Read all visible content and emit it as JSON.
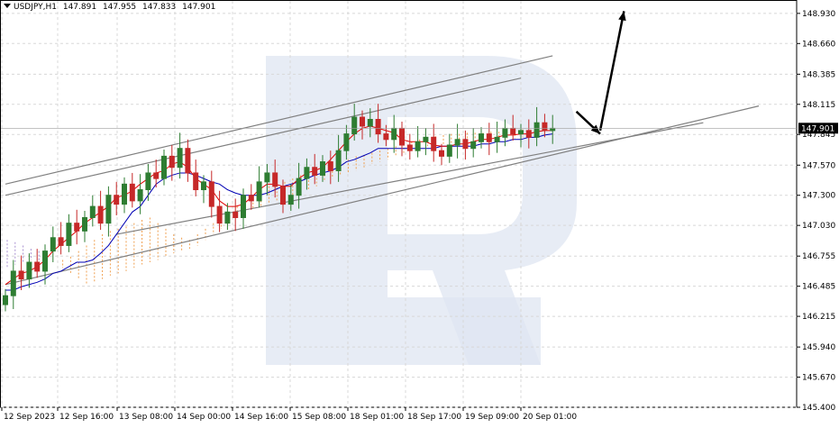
{
  "header": {
    "symbol": "USDJPY,H1",
    "open": "147.891",
    "high": "147.955",
    "low": "147.833",
    "close": "147.901"
  },
  "watermark": {
    "letter": "R",
    "color": "#dfe6f1"
  },
  "colors": {
    "background": "#ffffff",
    "grid": "#d8d8d8",
    "bull": "#2e7d32",
    "bear": "#c62828",
    "tenkan": "#e00000",
    "kijun": "#0000b4",
    "cloud_bull": "#f0a050",
    "cloud_bear": "#a890d0",
    "trendline": "#808080",
    "arrow": "#000000"
  },
  "chart_data": {
    "type": "candlestick",
    "symbol": "USDJPY",
    "timeframe": "H1",
    "current_price": "147.901",
    "y_ticks": [
      "148.930",
      "148.660",
      "148.385",
      "148.115",
      "147.845",
      "147.570",
      "147.300",
      "147.030",
      "146.755",
      "146.485",
      "146.215",
      "145.940",
      "145.670",
      "145.400"
    ],
    "x_ticks": [
      "12 Sep 2023",
      "12 Sep 16:00",
      "13 Sep 08:00",
      "14 Sep 00:00",
      "14 Sep 16:00",
      "15 Sep 08:00",
      "18 Sep 01:00",
      "18 Sep 17:00",
      "19 Sep 09:00",
      "20 Sep 01:00"
    ],
    "ylim": [
      145.4,
      149.05
    ],
    "closes": [
      146.4,
      146.62,
      146.55,
      146.7,
      146.62,
      146.8,
      146.92,
      146.85,
      147.05,
      146.98,
      147.1,
      147.2,
      147.05,
      147.3,
      147.22,
      147.4,
      147.25,
      147.35,
      147.5,
      147.45,
      147.65,
      147.55,
      147.72,
      147.5,
      147.35,
      147.42,
      147.2,
      147.05,
      147.15,
      147.1,
      147.3,
      147.25,
      147.42,
      147.5,
      147.38,
      147.22,
      147.3,
      147.45,
      147.55,
      147.48,
      147.6,
      147.52,
      147.7,
      147.85,
      148.0,
      147.92,
      147.98,
      147.85,
      147.8,
      147.9,
      147.75,
      147.7,
      147.78,
      147.82,
      147.7,
      147.65,
      147.75,
      147.8,
      147.72,
      147.78,
      147.85,
      147.78,
      147.82,
      147.9,
      147.85,
      147.88,
      147.82,
      147.95,
      147.88,
      147.9
    ],
    "tenkan": [
      146.5,
      146.55,
      146.6,
      146.62,
      146.66,
      146.72,
      146.8,
      146.86,
      146.92,
      146.98,
      147.05,
      147.1,
      147.15,
      147.2,
      147.28,
      147.3,
      147.34,
      147.4,
      147.45,
      147.5,
      147.52,
      147.58,
      147.6,
      147.55,
      147.45,
      147.4,
      147.35,
      147.25,
      147.2,
      147.2,
      147.22,
      147.28,
      147.35,
      147.4,
      147.4,
      147.38,
      147.38,
      147.45,
      147.5,
      147.52,
      147.55,
      147.62,
      147.7,
      147.78,
      147.85,
      147.9,
      147.92,
      147.9,
      147.88,
      147.86,
      147.8,
      147.78,
      147.78,
      147.78,
      147.75,
      147.74,
      147.74,
      147.76,
      147.76,
      147.78,
      147.8,
      147.8,
      147.82,
      147.84,
      147.84,
      147.85,
      147.85,
      147.87,
      147.88,
      147.88
    ],
    "kijun": [
      146.45,
      146.45,
      146.48,
      146.5,
      146.52,
      146.55,
      146.6,
      146.62,
      146.66,
      146.7,
      146.7,
      146.72,
      146.78,
      146.85,
      146.95,
      147.05,
      147.15,
      147.2,
      147.3,
      147.4,
      147.45,
      147.48,
      147.5,
      147.5,
      147.48,
      147.45,
      147.42,
      147.4,
      147.35,
      147.32,
      147.3,
      147.3,
      147.3,
      147.32,
      147.35,
      147.38,
      147.4,
      147.42,
      147.45,
      147.48,
      147.5,
      147.52,
      147.55,
      147.6,
      147.62,
      147.65,
      147.68,
      147.72,
      147.72,
      147.72,
      147.72,
      147.72,
      147.72,
      147.72,
      147.72,
      147.74,
      147.74,
      147.74,
      147.74,
      147.74,
      147.76,
      147.76,
      147.78,
      147.78,
      147.8,
      147.8,
      147.82,
      147.82,
      147.84,
      147.85
    ],
    "cloud_a": [
      146.65,
      146.68,
      146.7,
      146.72,
      146.7,
      146.68,
      146.7,
      146.72,
      146.75,
      146.8,
      146.85,
      146.9,
      146.95,
      146.98,
      147.0,
      147.02,
      147.05,
      147.08,
      147.1,
      147.05,
      147.0,
      146.95,
      146.92,
      146.9,
      146.95,
      147.0,
      147.05,
      147.1,
      147.15,
      147.2,
      147.25,
      147.3,
      147.35,
      147.38,
      147.4,
      147.42,
      147.45,
      147.48,
      147.5,
      147.52,
      147.55,
      147.58,
      147.6,
      147.62,
      147.65,
      147.66,
      147.68,
      147.7,
      147.72,
      147.74,
      147.76,
      147.78,
      147.8,
      147.82,
      147.83,
      147.84,
      147.85,
      147.85,
      147.86,
      147.86,
      147.86,
      147.87,
      147.87,
      147.88,
      147.88,
      147.89,
      147.89,
      147.9
    ],
    "cloud_b": [
      146.9,
      146.88,
      146.85,
      146.82,
      146.8,
      146.75,
      146.7,
      146.65,
      146.6,
      146.55,
      146.5,
      146.52,
      146.55,
      146.58,
      146.6,
      146.62,
      146.65,
      146.68,
      146.7,
      146.72,
      146.75,
      146.78,
      146.8,
      146.82,
      146.85,
      146.9,
      146.95,
      147.0,
      147.05,
      147.1,
      147.15,
      147.18,
      147.2,
      147.22,
      147.25,
      147.28,
      147.3,
      147.32,
      147.35,
      147.38,
      147.42,
      147.45,
      147.48,
      147.5,
      147.52,
      147.55,
      147.58,
      147.6,
      147.62,
      147.65,
      147.68,
      147.7,
      147.72,
      147.74,
      147.75,
      147.76,
      147.77,
      147.78,
      147.78,
      147.79,
      147.79,
      147.8,
      147.8,
      147.81,
      147.81,
      147.82,
      147.82,
      147.82
    ],
    "trend_lines": [
      {
        "from": [
          0,
          147.4
        ],
        "to": [
          69,
          148.55
        ]
      },
      {
        "from": [
          0,
          147.3
        ],
        "to": [
          65,
          148.35
        ]
      },
      {
        "from": [
          0,
          146.5
        ],
        "to": [
          95,
          148.1
        ]
      },
      {
        "from": [
          14,
          146.95
        ],
        "to": [
          88,
          147.95
        ]
      }
    ],
    "forecast_arrows": [
      {
        "from": [
          72,
          148.05
        ],
        "to": [
          75,
          147.85
        ]
      },
      {
        "from": [
          75,
          147.88
        ],
        "to": [
          78,
          148.95
        ]
      }
    ]
  }
}
